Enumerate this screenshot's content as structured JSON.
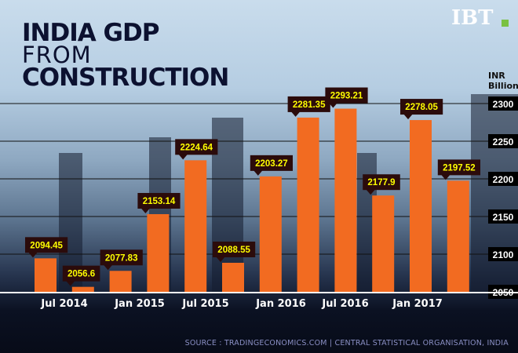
{
  "title": {
    "line1": "INDIA GDP",
    "line2": "FROM",
    "line3": "CONSTRUCTION"
  },
  "logo": "IBT.",
  "source": "SOURCE : TRADINGECONOMICS.COM  |  CENTRAL STATISTICAL ORGANISATION, INDIA",
  "chart_data": {
    "type": "bar",
    "title": "INDIA GDP FROM CONSTRUCTION",
    "ylabel": "INR Billion",
    "ylim": [
      2050,
      2300
    ],
    "yticks": [
      "2300",
      "2250",
      "2200",
      "2150",
      "2100",
      "2050"
    ],
    "xticks": [
      "Jul 2014",
      "Jan 2015",
      "Jul 2015",
      "Jan 2016",
      "Jul 2016",
      "Jan 2017"
    ],
    "values": [
      2094.45,
      2056.6,
      2077.83,
      2153.14,
      2224.64,
      2088.55,
      2203.27,
      2281.35,
      2293.21,
      2177.9,
      2278.05,
      2197.52
    ],
    "labels": [
      "2094.45",
      "2056.6",
      "2077.83",
      "2153.14",
      "2224.64",
      "2088.55",
      "2203.27",
      "2281.35",
      "2293.21",
      "2177.9",
      "2278.05",
      "2197.52"
    ],
    "grid": true,
    "colors": {
      "bar": "#f26b21",
      "label_bg": "#2b0b0b",
      "label_text": "#ffff00"
    }
  }
}
